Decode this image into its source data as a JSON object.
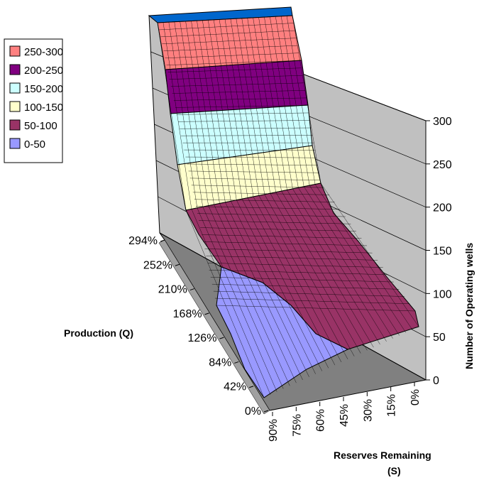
{
  "chart_data": {
    "type": "surface",
    "title": "",
    "xlabel": "Reserves Remaining (S)",
    "xlabel_lines": [
      "Reserves Remaining",
      "(S)"
    ],
    "ylabel": "Production (Q)",
    "zlabel": "Number of Operating wells",
    "x_ticks": [
      "90%",
      "75%",
      "60%",
      "45%",
      "30%",
      "15%",
      "0%"
    ],
    "y_ticks": [
      "294%",
      "252%",
      "210%",
      "168%",
      "126%",
      "84%",
      "42%",
      "0%"
    ],
    "z_ticks": [
      "300",
      "250",
      "200",
      "150",
      "100",
      "50",
      "0"
    ],
    "zlim": [
      0,
      300
    ],
    "legend_position": "top-left",
    "bands": [
      {
        "label": "250-300",
        "range": [
          250,
          300
        ],
        "color": "#ff8080"
      },
      {
        "label": "200-250",
        "range": [
          200,
          250
        ],
        "color": "#800080"
      },
      {
        "label": "150-200",
        "range": [
          150,
          200
        ],
        "color": "#ccffff"
      },
      {
        "label": "100-150",
        "range": [
          100,
          150
        ],
        "color": "#ffffcc"
      },
      {
        "label": "50-100",
        "range": [
          50,
          100
        ],
        "color": "#993366"
      },
      {
        "label": "0-50",
        "range": [
          0,
          50
        ],
        "color": "#9999ff"
      }
    ],
    "top_color": "#0066cc"
  }
}
